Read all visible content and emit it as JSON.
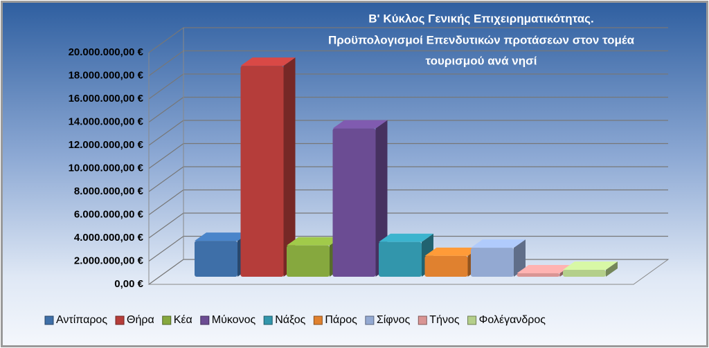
{
  "chart_data": {
    "type": "bar3d",
    "title": [
      "Β' Κύκλος Γενικής Επιχειρηματικότητας.",
      "Προϋπολογισμοί Επενδυτικών προτάσεων στον τομέα",
      "τουρισμού ανά νησί"
    ],
    "categories": [
      "Αντίπαρος",
      "Θήρα",
      "Κέα",
      "Μύκονος",
      "Νάξος",
      "Πάρος",
      "Σίφνος",
      "Τήνος",
      "Φολέγανδρος"
    ],
    "values": [
      3100000,
      18200000,
      2700000,
      12800000,
      3000000,
      1800000,
      2500000,
      300000,
      600000
    ],
    "colors": [
      "#3e6fa8",
      "#b53d3a",
      "#86a83e",
      "#6b4c93",
      "#3296ac",
      "#e0812f",
      "#93a9d2",
      "#d99594",
      "#b4cf8a"
    ],
    "ylim": [
      0,
      20000000
    ],
    "yticks": [
      {
        "value": 0,
        "label": "0,00 €"
      },
      {
        "value": 2000000,
        "label": "2.000.000,00 €"
      },
      {
        "value": 4000000,
        "label": "4.000.000,00 €"
      },
      {
        "value": 6000000,
        "label": "6.000.000,00 €"
      },
      {
        "value": 8000000,
        "label": "8.000.000,00 €"
      },
      {
        "value": 10000000,
        "label": "10.000.000,00 €"
      },
      {
        "value": 12000000,
        "label": "12.000.000,00 €"
      },
      {
        "value": 14000000,
        "label": "14.000.000,00 €"
      },
      {
        "value": 16000000,
        "label": "16.000.000,00 €"
      },
      {
        "value": 18000000,
        "label": "18.000.000,00 €"
      },
      {
        "value": 20000000,
        "label": "20.000.000,00 €"
      }
    ],
    "grid": true,
    "legend": "bottom"
  }
}
